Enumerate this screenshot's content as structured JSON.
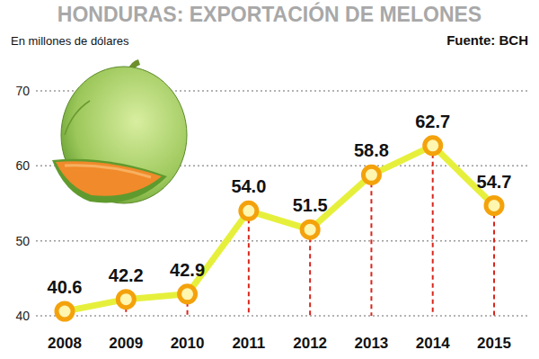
{
  "chart_data": {
    "type": "line",
    "title": "HONDURAS: EXPORTACIÓN DE MELONES",
    "ylabel": "En millones de dólares",
    "annotations": [
      "Fuente: BCH"
    ],
    "categories": [
      "2008",
      "2009",
      "2010",
      "2011",
      "2012",
      "2013",
      "2014",
      "2015"
    ],
    "values": [
      40.6,
      42.2,
      42.9,
      54.0,
      51.5,
      58.8,
      62.7,
      54.7
    ],
    "value_labels": [
      "40.6",
      "42.2",
      "42.9",
      "54.0",
      "51.5",
      "58.8",
      "62.7",
      "54.7"
    ],
    "color": "#e6f03c",
    "marker": "circle",
    "ylim": [
      40,
      70
    ],
    "yticks": [
      40,
      50,
      60,
      70
    ],
    "grid": true,
    "data_labels": true
  }
}
